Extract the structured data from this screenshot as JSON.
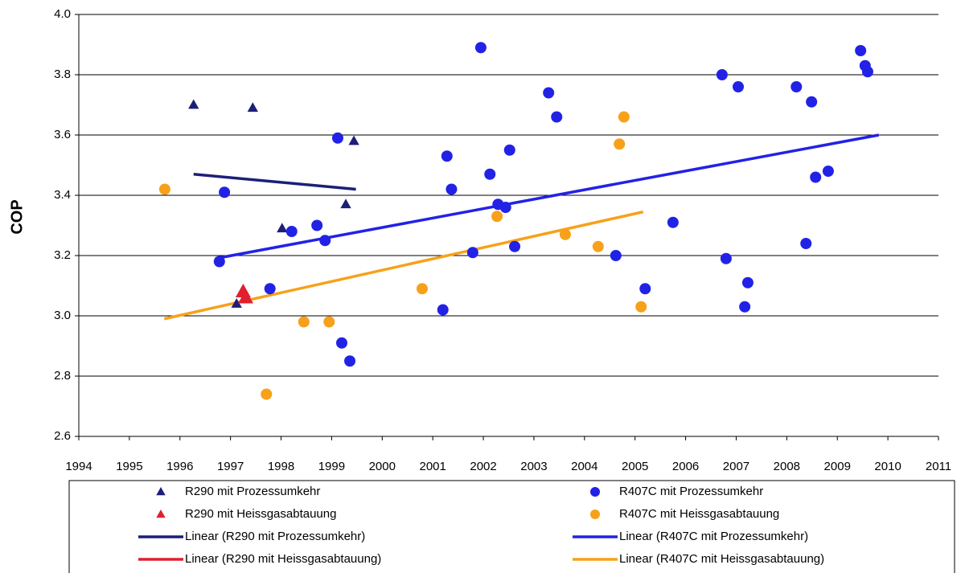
{
  "chart_data": {
    "type": "scatter",
    "ylabel": "COP",
    "xlim": [
      1994,
      2011
    ],
    "xticks": [
      1994,
      1995,
      1996,
      1997,
      1998,
      1999,
      2000,
      2001,
      2002,
      2003,
      2004,
      2005,
      2006,
      2007,
      2008,
      2009,
      2010,
      2011
    ],
    "ylim": [
      2.6,
      4.0
    ],
    "yticks": [
      2.6,
      2.8,
      {
        "value": 3.0,
        "label": "3.0"
      },
      3.2,
      3.4,
      3.6,
      3.8,
      {
        "value": 4.0,
        "label": "4.0"
      }
    ],
    "grid": true,
    "series": [
      {
        "name": "R290 mit Prozessumkehr",
        "color": "#1c1f78",
        "marker": "triangle",
        "x": [
          1996.27,
          1997.44,
          1999.44,
          1999.28,
          1998.02,
          1997.12
        ],
        "y": [
          3.7,
          3.69,
          3.58,
          3.37,
          3.29,
          3.04
        ]
      },
      {
        "name": "R407C mit Prozessumkehr",
        "color": "#2222e6",
        "marker": "circle",
        "x": [
          2001.95,
          1996.88,
          1999.12,
          1998.21,
          1998.71,
          1998.87,
          1996.78,
          1997.78,
          1999.2,
          1999.36,
          2001.28,
          2001.37,
          2001.2,
          2001.79,
          2002.13,
          2002.29,
          2002.44,
          2002.52,
          2002.62,
          2003.29,
          2003.45,
          2004.62,
          2005.2,
          2005.75,
          2006.72,
          2006.8,
          2007.04,
          2007.23,
          2007.17,
          2008.19,
          2008.49,
          2008.38,
          2008.57,
          2008.82,
          2009.46,
          2009.55,
          2009.6
        ],
        "y": [
          3.89,
          3.41,
          3.59,
          3.28,
          3.3,
          3.25,
          3.18,
          3.09,
          2.91,
          2.85,
          3.53,
          3.42,
          3.02,
          3.21,
          3.47,
          3.37,
          3.36,
          3.55,
          3.23,
          3.74,
          3.66,
          3.2,
          3.09,
          3.31,
          3.8,
          3.19,
          3.76,
          3.11,
          3.03,
          3.76,
          3.71,
          3.24,
          3.46,
          3.48,
          3.88,
          3.83,
          3.81
        ]
      },
      {
        "name": "R290 mit Heissgasabtauung",
        "color": "#e0202e",
        "marker": "triangle",
        "x": [
          1997.25,
          1997.3
        ],
        "y": [
          3.08,
          3.06
        ]
      },
      {
        "name": "R407C mit Heissgasabtauung",
        "color": "#f7a11a",
        "marker": "circle",
        "x": [
          1995.7,
          1997.71,
          1998.45,
          1998.95,
          2000.79,
          2002.27,
          2003.62,
          2004.27,
          2004.69,
          2004.78,
          2005.12
        ],
        "y": [
          3.42,
          2.74,
          2.98,
          2.98,
          3.09,
          3.33,
          3.27,
          3.23,
          3.57,
          3.66,
          3.03
        ]
      }
    ],
    "trendlines": [
      {
        "name": "Linear (R290 mit Prozessumkehr)",
        "color": "#1c1f78",
        "x": [
          1996.27,
          1999.48
        ],
        "y": [
          3.47,
          3.42
        ]
      },
      {
        "name": "Linear (R407C mit Prozessumkehr)",
        "color": "#2222e6",
        "x": [
          1996.7,
          2009.82
        ],
        "y": [
          3.19,
          3.6
        ]
      },
      {
        "name": "Linear (R290 mit Heissgasabtauung)",
        "color": "#e0202e",
        "x": [
          1997.25,
          1997.3
        ],
        "y": [
          3.08,
          3.06
        ]
      },
      {
        "name": "Linear (R407C mit Heissgasabtauung)",
        "color": "#f7a11a",
        "x": [
          1995.69,
          2005.16
        ],
        "y": [
          2.99,
          3.345
        ]
      }
    ]
  }
}
